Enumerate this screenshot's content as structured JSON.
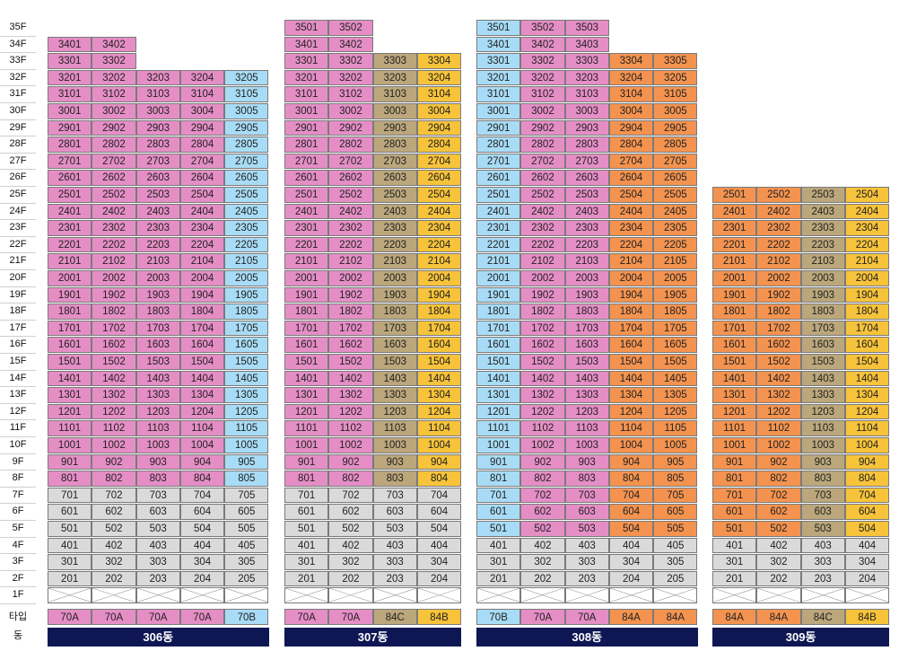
{
  "row_labels": {
    "type_label": "타입",
    "building_label": "동"
  },
  "floors": [
    "35F",
    "34F",
    "33F",
    "32F",
    "31F",
    "30F",
    "29F",
    "28F",
    "27F",
    "26F",
    "25F",
    "24F",
    "23F",
    "22F",
    "21F",
    "20F",
    "19F",
    "18F",
    "17F",
    "16F",
    "15F",
    "14F",
    "13F",
    "12F",
    "11F",
    "10F",
    "9F",
    "8F",
    "7F",
    "6F",
    "5F",
    "4F",
    "3F",
    "2F",
    "1F"
  ],
  "colors": {
    "pink": "#e58ec6",
    "blue": "#a8dcf6",
    "tan": "#bba77b",
    "yellow": "#f7c33a",
    "orange": "#f4934f",
    "grey": "#dadada",
    "navy": "#0e1753"
  },
  "buildings": [
    {
      "name": "306동",
      "columns": [
        {
          "line": "01",
          "type": "70A",
          "type_color": "pink",
          "top_floor": 34,
          "upper_color": "pink",
          "low_from_floor": 7,
          "low_color": "grey",
          "split_floor": 8
        },
        {
          "line": "02",
          "type": "70A",
          "type_color": "pink",
          "top_floor": 34,
          "upper_color": "pink",
          "low_from_floor": 7,
          "low_color": "grey",
          "split_floor": 8
        },
        {
          "line": "03",
          "type": "70A",
          "type_color": "pink",
          "top_floor": 32,
          "upper_color": "pink",
          "low_from_floor": 7,
          "low_color": "grey",
          "split_floor": 8
        },
        {
          "line": "04",
          "type": "70A",
          "type_color": "pink",
          "top_floor": 32,
          "upper_color": "pink",
          "low_from_floor": 7,
          "low_color": "grey",
          "split_floor": 8
        },
        {
          "line": "05",
          "type": "70B",
          "type_color": "blue",
          "top_floor": 32,
          "upper_color": "blue",
          "low_from_floor": 7,
          "low_color": "grey",
          "split_floor": 8
        }
      ]
    },
    {
      "name": "307동",
      "columns": [
        {
          "line": "01",
          "type": "70A",
          "type_color": "pink",
          "top_floor": 35,
          "upper_color": "pink",
          "low_from_floor": 7,
          "low_color": "grey",
          "split_floor": 8
        },
        {
          "line": "02",
          "type": "70A",
          "type_color": "pink",
          "top_floor": 35,
          "upper_color": "pink",
          "low_from_floor": 7,
          "low_color": "grey",
          "split_floor": 8
        },
        {
          "line": "03",
          "type": "84C",
          "type_color": "tan",
          "top_floor": 33,
          "upper_color": "tan",
          "low_from_floor": 7,
          "low_color": "grey",
          "split_floor": 8
        },
        {
          "line": "04",
          "type": "84B",
          "type_color": "yellow",
          "top_floor": 33,
          "upper_color": "yellow",
          "low_from_floor": 7,
          "low_color": "grey",
          "split_floor": 8
        }
      ]
    },
    {
      "name": "308동",
      "columns": [
        {
          "line": "01",
          "type": "70B",
          "type_color": "blue",
          "top_floor": 35,
          "upper_color": "blue",
          "low_from_floor": 4,
          "low_color": "grey",
          "split_floor": 5
        },
        {
          "line": "02",
          "type": "70A",
          "type_color": "pink",
          "top_floor": 35,
          "upper_color": "pink",
          "low_from_floor": 4,
          "low_color": "grey",
          "split_floor": 5
        },
        {
          "line": "03",
          "type": "70A",
          "type_color": "pink",
          "top_floor": 35,
          "upper_color": "pink",
          "low_from_floor": 4,
          "low_color": "grey",
          "split_floor": 5
        },
        {
          "line": "04",
          "type": "84A",
          "type_color": "orange",
          "top_floor": 33,
          "upper_color": "orange",
          "low_from_floor": 4,
          "low_color": "grey",
          "split_floor": 5
        },
        {
          "line": "05",
          "type": "84A",
          "type_color": "orange",
          "top_floor": 33,
          "upper_color": "orange",
          "low_from_floor": 4,
          "low_color": "grey",
          "split_floor": 5
        }
      ]
    },
    {
      "name": "309동",
      "columns": [
        {
          "line": "01",
          "type": "84A",
          "type_color": "orange",
          "top_floor": 25,
          "upper_color": "orange",
          "low_from_floor": 4,
          "low_color": "grey",
          "split_floor": 5
        },
        {
          "line": "02",
          "type": "84A",
          "type_color": "orange",
          "top_floor": 25,
          "upper_color": "orange",
          "low_from_floor": 4,
          "low_color": "grey",
          "split_floor": 5
        },
        {
          "line": "03",
          "type": "84C",
          "type_color": "tan",
          "top_floor": 25,
          "upper_color": "tan",
          "low_from_floor": 4,
          "low_color": "grey",
          "split_floor": 5
        },
        {
          "line": "04",
          "type": "84B",
          "type_color": "yellow",
          "top_floor": 25,
          "upper_color": "yellow",
          "low_from_floor": 4,
          "low_color": "grey",
          "split_floor": 5
        }
      ]
    }
  ]
}
